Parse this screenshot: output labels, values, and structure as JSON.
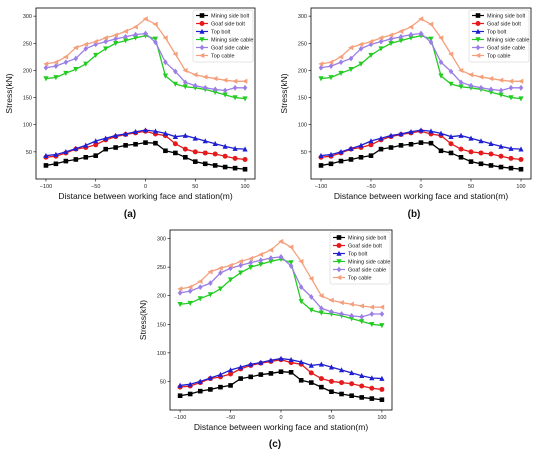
{
  "chart_data": [
    {
      "type": "line",
      "panel_label": "(a)",
      "xlabel": "Distance between working face and station(m)",
      "ylabel": "Stress(kN)",
      "xlim": [
        -110,
        110
      ],
      "ylim": [
        0,
        315
      ],
      "xticks": [
        -100,
        -50,
        0,
        50,
        100
      ],
      "yticks": [
        50,
        100,
        150,
        200,
        250,
        300
      ],
      "grid": false,
      "legend_position": "top-right",
      "x": [
        -100,
        -90,
        -80,
        -70,
        -60,
        -50,
        -40,
        -30,
        -20,
        -10,
        0,
        10,
        20,
        30,
        40,
        50,
        60,
        70,
        80,
        90,
        100
      ],
      "series": [
        {
          "name": "Mining side bolt",
          "color": "#000000",
          "marker": "square",
          "values": [
            25,
            28,
            33,
            36,
            40,
            43,
            55,
            58,
            62,
            64,
            67,
            66,
            52,
            48,
            40,
            32,
            28,
            25,
            22,
            20,
            18
          ]
        },
        {
          "name": "Goaf side bolt",
          "color": "#e41a1c",
          "marker": "circle",
          "values": [
            40,
            42,
            48,
            55,
            58,
            63,
            72,
            78,
            82,
            85,
            88,
            83,
            80,
            65,
            55,
            50,
            48,
            46,
            42,
            38,
            36
          ]
        },
        {
          "name": "Top bolt",
          "color": "#1f1fd0",
          "marker": "triangle-up",
          "values": [
            43,
            45,
            50,
            56,
            62,
            70,
            75,
            80,
            83,
            87,
            90,
            88,
            84,
            78,
            80,
            75,
            70,
            65,
            60,
            56,
            55
          ]
        },
        {
          "name": "Mining side cable",
          "color": "#22cc22",
          "marker": "triangle-down",
          "values": [
            185,
            187,
            195,
            202,
            212,
            228,
            240,
            250,
            255,
            260,
            264,
            258,
            190,
            175,
            170,
            168,
            165,
            160,
            155,
            150,
            148
          ]
        },
        {
          "name": "Goaf side cable",
          "color": "#9b7fe6",
          "marker": "diamond",
          "values": [
            205,
            208,
            215,
            222,
            240,
            248,
            253,
            258,
            262,
            266,
            268,
            252,
            215,
            198,
            178,
            172,
            168,
            165,
            163,
            168,
            168
          ]
        },
        {
          "name": "Top cable",
          "color": "#f4a07c",
          "marker": "left-triangle",
          "values": [
            212,
            215,
            225,
            242,
            248,
            253,
            260,
            265,
            272,
            280,
            295,
            285,
            260,
            230,
            200,
            192,
            188,
            185,
            182,
            180,
            180
          ]
        }
      ]
    },
    {
      "type": "line",
      "panel_label": "(b)",
      "xlabel": "Distance between working face and station(m)",
      "ylabel": "Stress(kN)",
      "xlim": [
        -110,
        110
      ],
      "ylim": [
        0,
        315
      ],
      "xticks": [
        -100,
        -50,
        0,
        50,
        100
      ],
      "yticks": [
        50,
        100,
        150,
        200,
        250,
        300
      ],
      "grid": false,
      "legend_position": "top-right",
      "x": [
        -100,
        -90,
        -80,
        -70,
        -60,
        -50,
        -40,
        -30,
        -20,
        -10,
        0,
        10,
        20,
        30,
        40,
        50,
        60,
        70,
        80,
        90,
        100
      ],
      "series": [
        {
          "name": "Mining side bolt",
          "color": "#000000",
          "marker": "square",
          "values": [
            25,
            28,
            33,
            36,
            40,
            43,
            55,
            58,
            62,
            64,
            67,
            66,
            52,
            48,
            40,
            32,
            28,
            25,
            22,
            20,
            18
          ]
        },
        {
          "name": "Goaf side bolt",
          "color": "#e41a1c",
          "marker": "circle",
          "values": [
            40,
            42,
            48,
            55,
            58,
            63,
            72,
            78,
            82,
            85,
            88,
            83,
            80,
            65,
            55,
            50,
            48,
            46,
            42,
            38,
            36
          ]
        },
        {
          "name": "Top bolt",
          "color": "#1f1fd0",
          "marker": "triangle-up",
          "values": [
            43,
            45,
            50,
            56,
            62,
            70,
            75,
            80,
            83,
            87,
            90,
            88,
            84,
            78,
            80,
            75,
            70,
            65,
            60,
            56,
            55
          ]
        },
        {
          "name": "Mining side cable",
          "color": "#22cc22",
          "marker": "triangle-down",
          "values": [
            185,
            187,
            195,
            202,
            212,
            228,
            240,
            250,
            255,
            260,
            264,
            258,
            190,
            175,
            170,
            168,
            165,
            160,
            155,
            150,
            148
          ]
        },
        {
          "name": "Goaf side cable",
          "color": "#9b7fe6",
          "marker": "diamond",
          "values": [
            205,
            208,
            215,
            222,
            240,
            248,
            253,
            258,
            262,
            266,
            268,
            252,
            215,
            198,
            178,
            172,
            168,
            165,
            163,
            168,
            168
          ]
        },
        {
          "name": "Top cable",
          "color": "#f4a07c",
          "marker": "left-triangle",
          "values": [
            212,
            215,
            225,
            242,
            248,
            253,
            260,
            265,
            272,
            280,
            295,
            285,
            260,
            230,
            200,
            192,
            188,
            185,
            182,
            180,
            180
          ]
        }
      ]
    },
    {
      "type": "line",
      "panel_label": "(c)",
      "xlabel": "Distance between working face and station(m)",
      "ylabel": "Stress(kN)",
      "xlim": [
        -110,
        110
      ],
      "ylim": [
        0,
        315
      ],
      "xticks": [
        -100,
        -50,
        0,
        50,
        100
      ],
      "yticks": [
        50,
        100,
        150,
        200,
        250,
        300
      ],
      "grid": false,
      "legend_position": "top-right",
      "x": [
        -100,
        -90,
        -80,
        -70,
        -60,
        -50,
        -40,
        -30,
        -20,
        -10,
        0,
        10,
        20,
        30,
        40,
        50,
        60,
        70,
        80,
        90,
        100
      ],
      "series": [
        {
          "name": "Mining side bolt",
          "color": "#000000",
          "marker": "square",
          "values": [
            25,
            28,
            33,
            36,
            40,
            43,
            55,
            58,
            62,
            64,
            67,
            66,
            52,
            48,
            40,
            32,
            28,
            25,
            22,
            20,
            18
          ]
        },
        {
          "name": "Goaf side bolt",
          "color": "#e41a1c",
          "marker": "circle",
          "values": [
            40,
            42,
            48,
            55,
            58,
            63,
            72,
            78,
            82,
            85,
            88,
            83,
            80,
            65,
            55,
            50,
            48,
            46,
            42,
            38,
            36
          ]
        },
        {
          "name": "Top bolt",
          "color": "#1f1fd0",
          "marker": "triangle-up",
          "values": [
            43,
            45,
            50,
            56,
            62,
            70,
            75,
            80,
            83,
            87,
            90,
            88,
            84,
            78,
            80,
            75,
            70,
            65,
            60,
            56,
            55
          ]
        },
        {
          "name": "Mining side cable",
          "color": "#22cc22",
          "marker": "triangle-down",
          "values": [
            185,
            187,
            195,
            202,
            212,
            228,
            240,
            250,
            255,
            260,
            264,
            258,
            190,
            175,
            170,
            168,
            165,
            160,
            155,
            150,
            148
          ]
        },
        {
          "name": "Goaf side cable",
          "color": "#9b7fe6",
          "marker": "diamond",
          "values": [
            205,
            208,
            215,
            222,
            240,
            248,
            253,
            258,
            262,
            266,
            268,
            252,
            215,
            198,
            178,
            172,
            168,
            165,
            163,
            168,
            168
          ]
        },
        {
          "name": "Top cable",
          "color": "#f4a07c",
          "marker": "left-triangle",
          "values": [
            212,
            215,
            225,
            242,
            248,
            253,
            260,
            265,
            272,
            280,
            295,
            285,
            260,
            230,
            200,
            192,
            188,
            185,
            182,
            180,
            180
          ]
        }
      ]
    }
  ]
}
